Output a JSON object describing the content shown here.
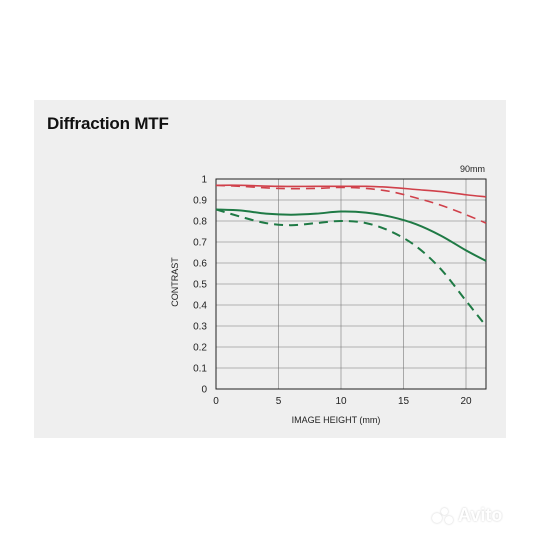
{
  "title": "Diffraction MTF",
  "watermark": "Avito",
  "chart_data": {
    "type": "line",
    "focal_label": "90mm",
    "xlabel": "IMAGE HEIGHT (mm)",
    "ylabel": "CONTRAST",
    "xlim": [
      0,
      21.6
    ],
    "ylim": [
      0,
      1
    ],
    "x_ticks": [
      "0",
      "5",
      "10",
      "15",
      "20"
    ],
    "y_ticks": [
      "0",
      "0.1",
      "0.2",
      "0.3",
      "0.4",
      "0.5",
      "0.6",
      "0.7",
      "0.8",
      "0.9",
      "1"
    ],
    "grid": true,
    "colors": {
      "red": "#d0404a",
      "green": "#1f7a45",
      "grid": "#777777",
      "axis": "#222222"
    },
    "series": [
      {
        "color": "red",
        "dashed": false,
        "x": [
          0,
          2,
          5,
          8,
          10,
          12,
          14,
          16,
          18,
          20,
          21.6
        ],
        "y": [
          0.97,
          0.97,
          0.965,
          0.965,
          0.965,
          0.965,
          0.96,
          0.95,
          0.94,
          0.925,
          0.915
        ]
      },
      {
        "color": "red",
        "dashed": true,
        "x": [
          0,
          2,
          5,
          8,
          10,
          12,
          14,
          16,
          18,
          20,
          21.6
        ],
        "y": [
          0.97,
          0.965,
          0.955,
          0.955,
          0.96,
          0.955,
          0.94,
          0.91,
          0.875,
          0.83,
          0.79
        ]
      },
      {
        "color": "green",
        "dashed": false,
        "x": [
          0,
          2,
          4,
          6,
          8,
          10,
          12,
          14,
          16,
          18,
          20,
          21.6
        ],
        "y": [
          0.855,
          0.85,
          0.835,
          0.83,
          0.835,
          0.845,
          0.84,
          0.82,
          0.785,
          0.73,
          0.66,
          0.61
        ]
      },
      {
        "color": "green",
        "dashed": true,
        "x": [
          0,
          2,
          4,
          6,
          8,
          10,
          12,
          14,
          16,
          18,
          20,
          21.6
        ],
        "y": [
          0.855,
          0.82,
          0.79,
          0.78,
          0.79,
          0.8,
          0.79,
          0.75,
          0.68,
          0.57,
          0.42,
          0.3
        ]
      }
    ]
  }
}
